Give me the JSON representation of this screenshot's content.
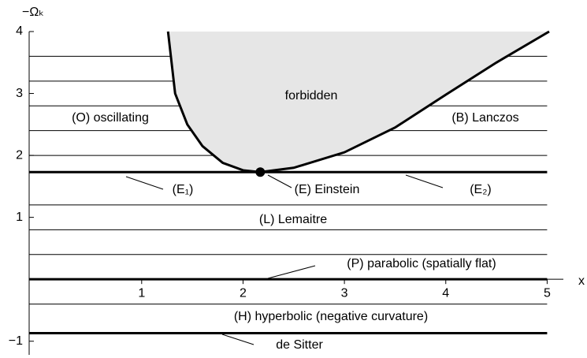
{
  "chart_data": {
    "type": "phase-diagram",
    "xlabel": "x",
    "ylabel": "−Ωₖ",
    "xlim": [
      -0.11,
      5.16
    ],
    "ylim": [
      -1.22,
      4
    ],
    "xticks": [
      1,
      2,
      3,
      4,
      5
    ],
    "yticks": [
      {
        "value": -1,
        "label": "−1"
      },
      1,
      2,
      3,
      4
    ],
    "forbidden": {
      "label": "forbidden",
      "color": "#e6e6e6",
      "x": [
        1.26,
        1.33,
        1.45,
        1.6,
        1.8,
        2.0,
        2.17,
        2.5,
        3.0,
        3.5,
        4.0,
        4.5,
        5.02
      ],
      "y": [
        4,
        3,
        2.5,
        2.15,
        1.88,
        1.76,
        1.73,
        1.8,
        2.05,
        2.45,
        2.98,
        3.5,
        4
      ]
    },
    "trajectories": [
      3.6,
      3.2,
      2.8,
      2.4,
      2.0,
      1.2,
      0.8,
      0.4,
      -0.4
    ],
    "special_lines": [
      1.73,
      0,
      -0.87
    ],
    "einstein_point": {
      "x": 2.17,
      "y": 1.73
    },
    "annotations": [
      "forbidden",
      "(O) oscillating",
      "(B) Lanczos",
      "(E₁)",
      "(E) Einstein",
      "(E₂)",
      "(L) Lemaitre",
      "(P) parabolic (spatially flat)",
      "(H) hyperbolic (negative curvature)",
      "de Sitter"
    ]
  }
}
